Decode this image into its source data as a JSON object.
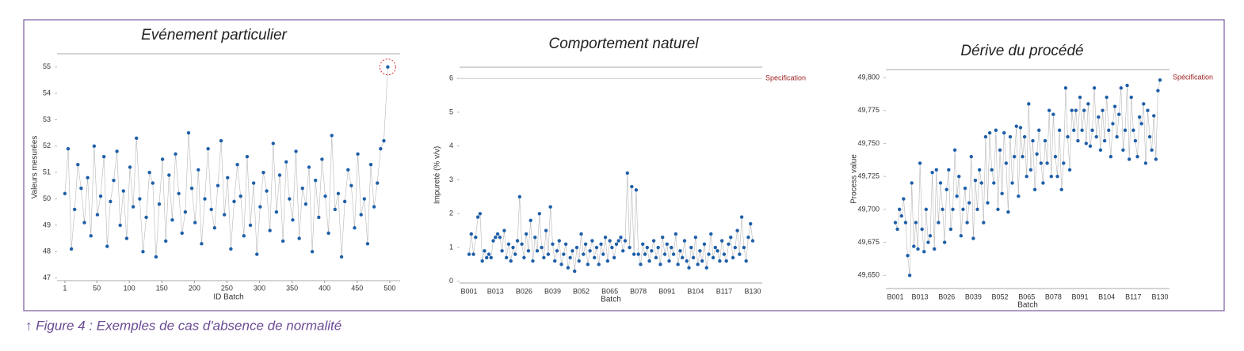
{
  "chart_data": [
    {
      "type": "line",
      "title": "Evénement particulier",
      "x_label": "ID Batch",
      "y_label": "Valeurs mesurées",
      "color": "#1f5fa8",
      "line_color": "#b8b8b8",
      "highlight_last": true,
      "x": [
        1,
        6,
        11,
        16,
        21,
        26,
        31,
        36,
        41,
        46,
        51,
        56,
        61,
        66,
        71,
        76,
        81,
        86,
        91,
        96,
        101,
        106,
        111,
        116,
        121,
        126,
        131,
        136,
        141,
        146,
        151,
        156,
        161,
        166,
        171,
        176,
        181,
        186,
        191,
        196,
        201,
        206,
        211,
        216,
        221,
        226,
        231,
        236,
        241,
        246,
        251,
        256,
        261,
        266,
        271,
        276,
        281,
        286,
        291,
        296,
        301,
        306,
        311,
        316,
        321,
        326,
        331,
        336,
        341,
        346,
        351,
        356,
        361,
        366,
        371,
        376,
        381,
        386,
        391,
        396,
        401,
        406,
        411,
        416,
        421,
        426,
        431,
        436,
        441,
        446,
        451,
        456,
        461,
        466,
        471,
        476,
        481,
        486,
        491,
        497
      ],
      "values": [
        50.2,
        51.9,
        48.1,
        49.6,
        51.3,
        50.4,
        49.1,
        50.8,
        48.6,
        52.0,
        49.4,
        50.1,
        51.6,
        48.2,
        49.9,
        50.7,
        51.8,
        49.0,
        50.3,
        48.5,
        51.2,
        49.7,
        52.3,
        50.0,
        48.0,
        49.3,
        51.0,
        50.6,
        47.8,
        49.8,
        51.5,
        48.4,
        50.9,
        49.2,
        51.7,
        50.2,
        48.7,
        49.5,
        52.5,
        50.4,
        49.1,
        51.1,
        48.3,
        50.0,
        51.9,
        49.6,
        48.9,
        50.5,
        52.2,
        49.4,
        50.8,
        48.1,
        49.9,
        51.3,
        50.1,
        48.6,
        51.6,
        49.0,
        50.6,
        47.9,
        49.7,
        51.0,
        50.3,
        48.8,
        52.1,
        49.5,
        50.9,
        48.4,
        51.4,
        50.0,
        49.2,
        51.8,
        48.5,
        50.4,
        49.8,
        51.2,
        48.0,
        50.7,
        49.3,
        51.5,
        50.1,
        48.7,
        52.4,
        49.6,
        50.2,
        47.8,
        49.9,
        51.1,
        50.5,
        48.9,
        51.7,
        49.4,
        50.0,
        48.3,
        51.3,
        49.7,
        50.6,
        51.9,
        52.2,
        55.0
      ],
      "xlim": [
        -11,
        516
      ],
      "xticks": [
        1,
        50,
        100,
        150,
        200,
        250,
        300,
        350,
        400,
        450,
        500
      ],
      "ylim": [
        46.9,
        55.5
      ],
      "yticks": [
        47,
        48,
        49,
        50,
        51,
        52,
        53,
        54,
        55
      ]
    },
    {
      "type": "line",
      "title": "Comportement naturel",
      "x_label": "Batch",
      "y_label": "Impureté (% v/v)",
      "color": "#1f5fa8",
      "line_color": "#b8b8b8",
      "spec": {
        "value": 6,
        "label": "Specification"
      },
      "spec_line": true,
      "categories": [
        "B001",
        null,
        null,
        null,
        null,
        null,
        null,
        null,
        null,
        null,
        null,
        null,
        "B013",
        null,
        null,
        null,
        null,
        null,
        null,
        null,
        null,
        null,
        null,
        null,
        null,
        "B026",
        null,
        null,
        null,
        null,
        null,
        null,
        null,
        null,
        null,
        null,
        null,
        null,
        "B039",
        null,
        null,
        null,
        null,
        null,
        null,
        null,
        null,
        null,
        null,
        null,
        null,
        "B052",
        null,
        null,
        null,
        null,
        null,
        null,
        null,
        null,
        null,
        null,
        null,
        null,
        "B065",
        null,
        null,
        null,
        null,
        null,
        null,
        null,
        null,
        null,
        null,
        null,
        null,
        "B078",
        null,
        null,
        null,
        null,
        null,
        null,
        null,
        null,
        null,
        null,
        null,
        null,
        "B091",
        null,
        null,
        null,
        null,
        null,
        null,
        null,
        null,
        null,
        null,
        null,
        null,
        "B104",
        null,
        null,
        null,
        null,
        null,
        null,
        null,
        null,
        null,
        null,
        null,
        null,
        "B117",
        null,
        null,
        null,
        null,
        null,
        null,
        null,
        null,
        null,
        null,
        null,
        null,
        "B130"
      ],
      "values": [
        0.8,
        1.4,
        0.8,
        1.3,
        1.9,
        2.0,
        0.6,
        0.9,
        0.7,
        0.8,
        0.7,
        1.2,
        1.3,
        1.4,
        1.3,
        0.9,
        1.5,
        0.7,
        1.1,
        0.6,
        1.0,
        0.8,
        1.2,
        2.5,
        1.1,
        0.7,
        1.4,
        0.9,
        1.8,
        0.6,
        1.3,
        0.9,
        2.0,
        1.0,
        0.7,
        1.5,
        0.8,
        2.2,
        1.1,
        0.6,
        0.9,
        1.2,
        0.5,
        0.8,
        1.1,
        0.4,
        0.7,
        0.9,
        0.3,
        1.0,
        0.6,
        1.4,
        0.8,
        1.1,
        0.5,
        0.9,
        1.2,
        0.7,
        1.0,
        0.5,
        1.1,
        0.8,
        1.3,
        0.6,
        1.2,
        1.0,
        0.7,
        1.1,
        1.2,
        1.3,
        0.9,
        1.2,
        3.2,
        1.0,
        2.8,
        0.8,
        2.7,
        0.8,
        0.5,
        1.1,
        0.8,
        1.0,
        0.6,
        0.9,
        1.2,
        0.7,
        1.0,
        0.5,
        1.3,
        0.8,
        1.1,
        0.6,
        1.0,
        0.8,
        1.4,
        0.5,
        0.9,
        0.7,
        1.2,
        0.6,
        0.4,
        1.0,
        0.7,
        1.3,
        0.5,
        0.9,
        0.6,
        1.1,
        0.4,
        0.8,
        1.4,
        0.7,
        1.0,
        0.9,
        0.6,
        1.2,
        0.8,
        0.6,
        1.1,
        1.3,
        0.7,
        1.0,
        1.5,
        0.8,
        1.9,
        1.0,
        0.6,
        1.3,
        1.7,
        1.2
      ],
      "ylim": [
        -0.05,
        6.33
      ],
      "yticks": [
        0,
        1,
        2,
        3,
        4,
        5,
        6
      ]
    },
    {
      "type": "line",
      "title": "Dérive du procédé",
      "x_label": "Batch",
      "y_label": "Process value",
      "color": "#1f5fa8",
      "line_color": "#b8b8b8",
      "spec": {
        "value": 49800,
        "label": "Spécification"
      },
      "spec_line": false,
      "categories": [
        "B001",
        null,
        null,
        null,
        null,
        null,
        null,
        null,
        null,
        null,
        null,
        null,
        "B013",
        null,
        null,
        null,
        null,
        null,
        null,
        null,
        null,
        null,
        null,
        null,
        null,
        "B026",
        null,
        null,
        null,
        null,
        null,
        null,
        null,
        null,
        null,
        null,
        null,
        null,
        "B039",
        null,
        null,
        null,
        null,
        null,
        null,
        null,
        null,
        null,
        null,
        null,
        null,
        "B052",
        null,
        null,
        null,
        null,
        null,
        null,
        null,
        null,
        null,
        null,
        null,
        null,
        "B065",
        null,
        null,
        null,
        null,
        null,
        null,
        null,
        null,
        null,
        null,
        null,
        null,
        "B078",
        null,
        null,
        null,
        null,
        null,
        null,
        null,
        null,
        null,
        null,
        null,
        null,
        "B091",
        null,
        null,
        null,
        null,
        null,
        null,
        null,
        null,
        null,
        null,
        null,
        null,
        "B104",
        null,
        null,
        null,
        null,
        null,
        null,
        null,
        null,
        null,
        null,
        null,
        null,
        "B117",
        null,
        null,
        null,
        null,
        null,
        null,
        null,
        null,
        null,
        null,
        null,
        null,
        "B130"
      ],
      "values": [
        49690,
        49685,
        49700,
        49695,
        49708,
        49690,
        49665,
        49650,
        49720,
        49672,
        49690,
        49670,
        49735,
        49685,
        49668,
        49700,
        49675,
        49680,
        49728,
        49670,
        49730,
        49690,
        49720,
        49700,
        49675,
        49715,
        49730,
        49685,
        49700,
        49745,
        49710,
        49725,
        49680,
        49700,
        49716,
        49690,
        49705,
        49740,
        49678,
        49722,
        49700,
        49730,
        49720,
        49690,
        49755,
        49705,
        49758,
        49730,
        49720,
        49760,
        49700,
        49745,
        49712,
        49758,
        49735,
        49698,
        49755,
        49720,
        49740,
        49763,
        49710,
        49762,
        49740,
        49755,
        49725,
        49780,
        49730,
        49752,
        49715,
        49742,
        49760,
        49735,
        49720,
        49752,
        49735,
        49775,
        49725,
        49772,
        49740,
        49725,
        49760,
        49715,
        49735,
        49792,
        49755,
        49730,
        49775,
        49760,
        49775,
        49752,
        49785,
        49760,
        49775,
        49750,
        49780,
        49748,
        49760,
        49792,
        49755,
        49770,
        49745,
        49775,
        49752,
        49785,
        49760,
        49740,
        49765,
        49778,
        49755,
        49772,
        49792,
        49745,
        49760,
        49794,
        49738,
        49785,
        49760,
        49752,
        49740,
        49770,
        49765,
        49780,
        49735,
        49775,
        49755,
        49745,
        49771,
        49738,
        49790,
        49798
      ],
      "ylim": [
        49640,
        49806
      ],
      "yticks": [
        {
          "value": 49650,
          "label": "49,650"
        },
        {
          "value": 49675,
          "label": "49,675"
        },
        {
          "value": 49700,
          "label": "49,700"
        },
        {
          "value": 49725,
          "label": "49,725"
        },
        {
          "value": 49750,
          "label": "49,750"
        },
        {
          "value": 49775,
          "label": "49,775"
        },
        {
          "value": 49800,
          "label": "49,800"
        }
      ]
    }
  ],
  "caption": "↑ Figure 4 : Exemples de cas d'absence de normalité"
}
